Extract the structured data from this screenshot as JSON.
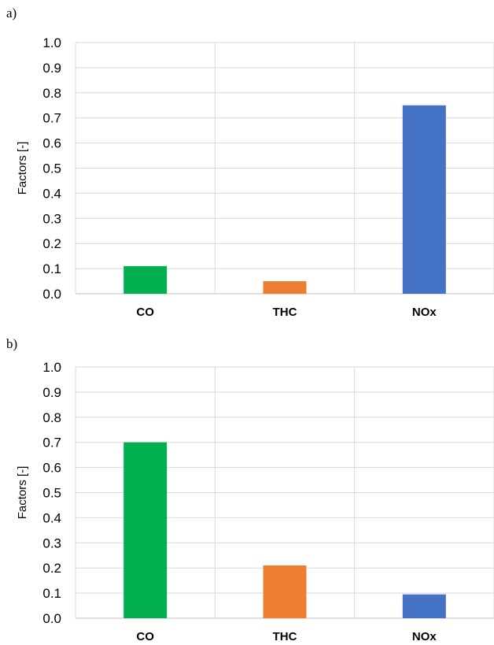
{
  "chart_data": [
    {
      "type": "bar",
      "panel_label": "a)",
      "categories": [
        "CO",
        "THC",
        "NOx"
      ],
      "values": [
        0.11,
        0.05,
        0.75
      ],
      "colors": [
        "#00b050",
        "#ed7d31",
        "#4472c4"
      ],
      "ylabel": "Factors [-]",
      "xlabel": "",
      "ylim": [
        0,
        1.0
      ],
      "yticks": [
        "0.0",
        "0.1",
        "0.2",
        "0.3",
        "0.4",
        "0.5",
        "0.6",
        "0.7",
        "0.8",
        "0.9",
        "1.0"
      ],
      "grid": true,
      "legend": "none"
    },
    {
      "type": "bar",
      "panel_label": "b)",
      "categories": [
        "CO",
        "THC",
        "NOx"
      ],
      "values": [
        0.7,
        0.21,
        0.095
      ],
      "colors": [
        "#00b050",
        "#ed7d31",
        "#4472c4"
      ],
      "ylabel": "Factors [-]",
      "xlabel": "",
      "ylim": [
        0,
        1.0
      ],
      "yticks": [
        "0.0",
        "0.1",
        "0.2",
        "0.3",
        "0.4",
        "0.5",
        "0.6",
        "0.7",
        "0.8",
        "0.9",
        "1.0"
      ],
      "grid": true,
      "legend": "none"
    }
  ]
}
